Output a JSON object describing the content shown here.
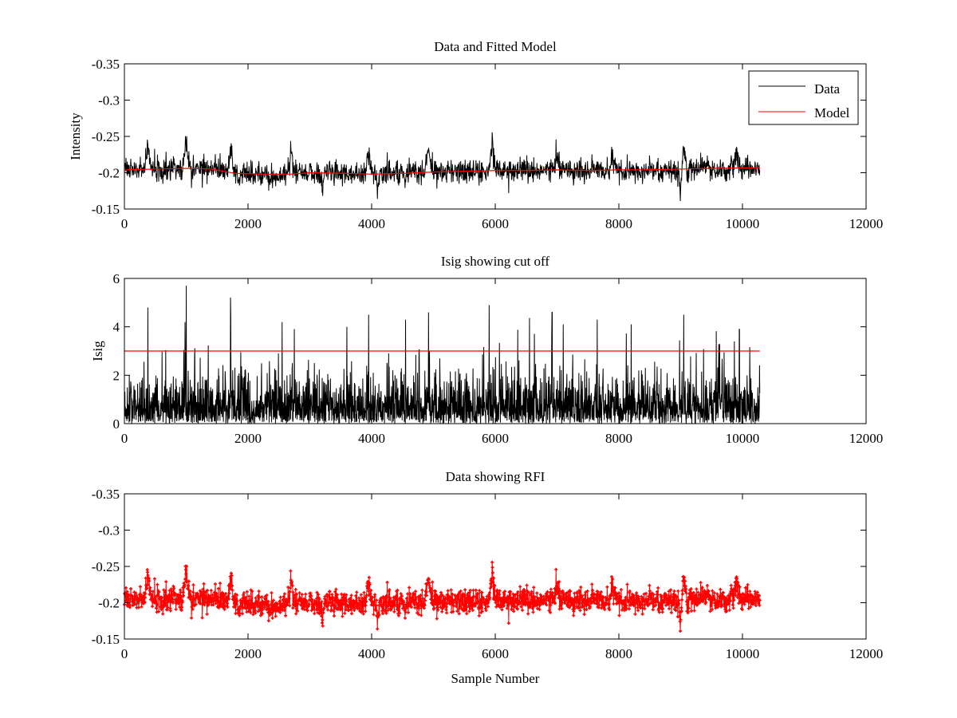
{
  "chart_data": [
    {
      "type": "line",
      "title": "Data and Fitted Model",
      "xlabel": "",
      "ylabel": "Intensity",
      "xlim": [
        0,
        12000
      ],
      "ylim": [
        -0.35,
        -0.15
      ],
      "y_reversed": true,
      "xticks": [
        0,
        2000,
        4000,
        6000,
        8000,
        10000,
        12000
      ],
      "yticks": [
        -0.15,
        -0.2,
        -0.25,
        -0.3,
        -0.35
      ],
      "grid": false,
      "legend_position": "top-right",
      "series": [
        {
          "name": "Data",
          "color": "#000000",
          "style": "line",
          "x_range": [
            0,
            10280
          ],
          "baseline": [
            [
              0,
              -0.205
            ],
            [
              1500,
              -0.205
            ],
            [
              1900,
              -0.198
            ],
            [
              2600,
              -0.197
            ],
            [
              3000,
              -0.2
            ],
            [
              3800,
              -0.2
            ],
            [
              4000,
              -0.197
            ],
            [
              5000,
              -0.201
            ],
            [
              6000,
              -0.203
            ],
            [
              7000,
              -0.203
            ],
            [
              8000,
              -0.203
            ],
            [
              9000,
              -0.204
            ],
            [
              10280,
              -0.207
            ]
          ],
          "noise_sigma": 0.008,
          "dips": [
            [
              380,
              -0.245
            ],
            [
              1000,
              -0.252
            ],
            [
              1720,
              -0.235
            ],
            [
              2700,
              -0.232
            ],
            [
              3950,
              -0.232
            ],
            [
              4920,
              -0.236
            ],
            [
              5950,
              -0.242
            ],
            [
              7000,
              -0.232
            ],
            [
              7900,
              -0.228
            ],
            [
              9050,
              -0.241
            ],
            [
              9900,
              -0.237
            ]
          ],
          "peaks": [
            [
              1850,
              -0.181
            ],
            [
              2350,
              -0.18
            ],
            [
              3200,
              -0.182
            ],
            [
              4100,
              -0.18
            ],
            [
              9000,
              -0.175
            ]
          ]
        },
        {
          "name": "Model",
          "color": "#ff0000",
          "style": "line",
          "values": [
            [
              0,
              -0.204
            ],
            [
              500,
              -0.205
            ],
            [
              1000,
              -0.206
            ],
            [
              1400,
              -0.205
            ],
            [
              1800,
              -0.199
            ],
            [
              2300,
              -0.198
            ],
            [
              2700,
              -0.198
            ],
            [
              3000,
              -0.2
            ],
            [
              3600,
              -0.199
            ],
            [
              4000,
              -0.198
            ],
            [
              4500,
              -0.199
            ],
            [
              5000,
              -0.201
            ],
            [
              5500,
              -0.202
            ],
            [
              6000,
              -0.203
            ],
            [
              6500,
              -0.203
            ],
            [
              7000,
              -0.204
            ],
            [
              7500,
              -0.203
            ],
            [
              8000,
              -0.204
            ],
            [
              8500,
              -0.204
            ],
            [
              9000,
              -0.205
            ],
            [
              9500,
              -0.206
            ],
            [
              10280,
              -0.207
            ]
          ]
        }
      ]
    },
    {
      "type": "line",
      "title": "Isig showing cut off",
      "xlabel": "",
      "ylabel": "Isig",
      "xlim": [
        0,
        12000
      ],
      "ylim": [
        0,
        6
      ],
      "xticks": [
        0,
        2000,
        4000,
        6000,
        8000,
        10000,
        12000
      ],
      "yticks": [
        0,
        2,
        4,
        6
      ],
      "grid": false,
      "series": [
        {
          "color": "#000000",
          "style": "line",
          "x_range": [
            0,
            10280
          ],
          "mean": 0.8,
          "spikes": [
            [
              380,
              4.8
            ],
            [
              1000,
              5.7
            ],
            [
              980,
              4.2
            ],
            [
              1720,
              4.5
            ],
            [
              2550,
              4.2
            ],
            [
              3600,
              4.0
            ],
            [
              3950,
              4.5
            ],
            [
              4550,
              4.3
            ],
            [
              4920,
              4.6
            ],
            [
              5900,
              4.9
            ],
            [
              6920,
              4.6
            ],
            [
              7100,
              4.1
            ],
            [
              7650,
              4.3
            ],
            [
              8200,
              4.1
            ],
            [
              9050,
              4.5
            ],
            [
              9950,
              3.9
            ],
            [
              9870,
              3.4
            ]
          ]
        },
        {
          "color": "#ff0000",
          "style": "line",
          "values": [
            [
              0,
              3
            ],
            [
              10280,
              3
            ]
          ]
        }
      ]
    },
    {
      "type": "scatter",
      "title": "Data showing RFI",
      "xlabel": "Sample Number",
      "ylabel": "",
      "xlim": [
        0,
        12000
      ],
      "ylim": [
        -0.35,
        -0.15
      ],
      "y_reversed": true,
      "xticks": [
        0,
        2000,
        4000,
        6000,
        8000,
        10000,
        12000
      ],
      "yticks": [
        -0.15,
        -0.2,
        -0.25,
        -0.3,
        -0.35
      ],
      "grid": false,
      "series": [
        {
          "color": "#ff0000",
          "style": "line-with-markers",
          "same_data_as": "Data",
          "x_range": [
            0,
            10280
          ]
        }
      ]
    }
  ]
}
